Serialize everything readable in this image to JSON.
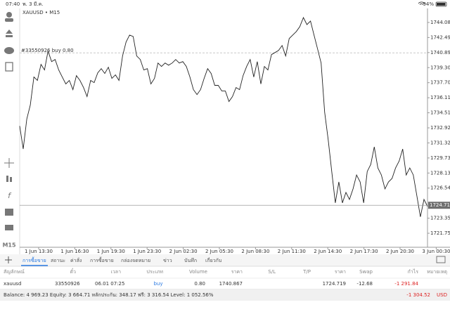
{
  "status_bar": {
    "time": "07:40",
    "date": "พ. 3 มี.ค.",
    "battery": "94%"
  },
  "chart": {
    "title": "XAUUSD • M15",
    "ylim": [
      1720.27,
      1745.57
    ],
    "yticks": [
      1744.085,
      1742.49,
      1740.895,
      {
        "value": 1739.3,
        "label": "1739.300"
      },
      1737.705,
      {
        "value": 1736.11,
        "label": "1736.110"
      },
      1734.515,
      {
        "value": 1732.92,
        "label": "1732.920"
      },
      1731.325,
      {
        "value": 1729.73,
        "label": "1729.730"
      },
      1728.135,
      {
        "value": 1726.54,
        "label": "1726.540"
      },
      {
        "value": 1723.35,
        "label": "1723.350"
      },
      1721.755
    ],
    "x_labels": [
      "1 Jun 13:30",
      "1 Jun 16:30",
      "1 Jun 19:30",
      "1 Jun 23:30",
      "2 Jun 02:30",
      "2 Jun 05:30",
      "2 Jun 08:30",
      "2 Jun 11:30",
      "2 Jun 14:30",
      "2 Jun 17:30",
      "2 Jun 20:30",
      "3 Jun 00:30"
    ],
    "color": "#222222",
    "values": [
      1733.12,
      1730.68,
      1733.86,
      1735.34,
      1738.31,
      1737.94,
      1739.64,
      1739.05,
      1741.05,
      1739.94,
      1740.16,
      1739.05,
      1738.31,
      1737.57,
      1737.94,
      1736.97,
      1738.45,
      1737.94,
      1737.19,
      1736.23,
      1737.94,
      1737.71,
      1738.75,
      1739.19,
      1738.68,
      1739.34,
      1738.16,
      1738.53,
      1737.94,
      1740.53,
      1742.01,
      1742.75,
      1742.6,
      1740.53,
      1740.16,
      1739.05,
      1739.19,
      1737.57,
      1738.16,
      1739.79,
      1739.42,
      1739.79,
      1739.56,
      1739.79,
      1740.16,
      1739.79,
      1739.94,
      1739.42,
      1738.31,
      1736.97,
      1736.45,
      1736.97,
      1738.16,
      1739.19,
      1738.68,
      1737.42,
      1737.42,
      1736.82,
      1736.82,
      1735.71,
      1736.23,
      1737.19,
      1736.97,
      1738.45,
      1739.42,
      1740.16,
      1738.31,
      1739.94,
      1737.57,
      1739.42,
      1739.05,
      1740.68,
      1740.9,
      1741.12,
      1741.64,
      1740.53,
      1742.38,
      1742.75,
      1743.12,
      1743.64,
      1744.6,
      1743.86,
      1744.23,
      1742.75,
      1741.27,
      1739.79,
      1734.6,
      1731.64,
      1728.3,
      1724.97,
      1727.19,
      1724.97,
      1726.08,
      1725.34,
      1726.45,
      1727.93,
      1727.19,
      1724.97,
      1728.3,
      1729.04,
      1730.9,
      1728.67,
      1727.93,
      1726.45,
      1727.19,
      1727.56,
      1728.67,
      1729.41,
      1730.68,
      1727.93,
      1728.67,
      1727.93,
      1725.71,
      1723.49,
      1725.34,
      1724.6
    ],
    "order_line": {
      "label": "#33550926 buy 0.80",
      "price": 1740.867
    },
    "current_price": 1724.719
  },
  "timeframe_button": "M15",
  "tabs": [
    "การซื้อขาย",
    "สถานะ",
    "ค่าสั่ง",
    "การซื้อขาย",
    "กล่องจดหมาย",
    "ข่าว",
    "บันทึก",
    "เกี่ยวกับ"
  ],
  "table": {
    "columns": [
      "สัญลักษณ์",
      "ตั๋ว",
      "เวลา",
      "ประเภท",
      "Volume",
      "ราคา",
      "S/L",
      "T/P",
      "ราคา",
      "Swap",
      "กำไร",
      "หมายเหตุ"
    ],
    "rows": [
      [
        "xauusd",
        "33550926",
        "06.01 07:25",
        "buy",
        "0.80",
        "1740.867",
        null,
        null,
        "1724.719",
        "-12.68",
        "-1 291.84",
        null
      ]
    ]
  },
  "footer": {
    "summary": "Balance: 4 969.23 Equity: 3 664.71 หลักประกัน: 348.17 ฟรี: 3 316.54 Level: 1 052.56%",
    "total": "-1 304.52",
    "currency": "USD"
  }
}
